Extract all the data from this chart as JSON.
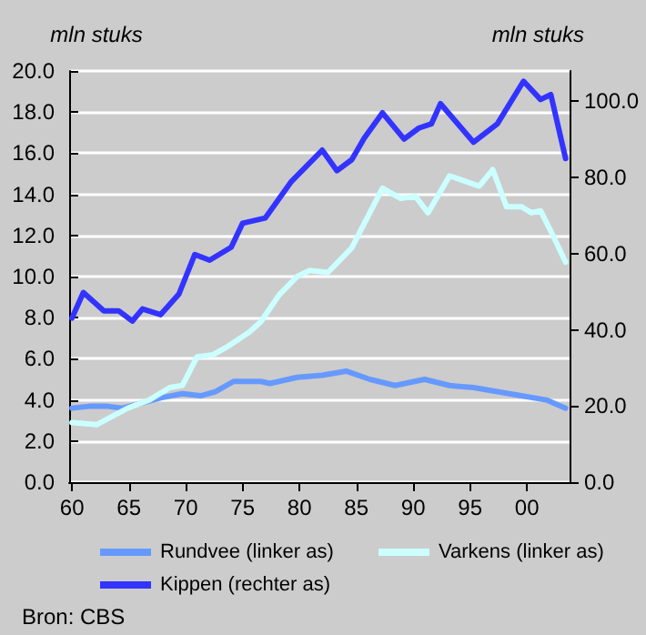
{
  "chart_data": {
    "type": "line",
    "ylabel": "mln stuks",
    "y2label": "mln stuks",
    "xlim": [
      1959.75,
      2003.75
    ],
    "xticks": [
      {
        "value": 1960,
        "label": "60"
      },
      {
        "value": 1965,
        "label": "65"
      },
      {
        "value": 1970,
        "label": "70"
      },
      {
        "value": 1975,
        "label": "75"
      },
      {
        "value": 1980,
        "label": "80"
      },
      {
        "value": 1985,
        "label": "85"
      },
      {
        "value": 1990,
        "label": "90"
      },
      {
        "value": 1995,
        "label": "95"
      },
      {
        "value": 2000,
        "label": "00"
      }
    ],
    "ylim": [
      0,
      20
    ],
    "yticks": [
      {
        "value": 0,
        "label": "0.0"
      },
      {
        "value": 2,
        "label": "2.0"
      },
      {
        "value": 4,
        "label": "4.0"
      },
      {
        "value": 6,
        "label": "6.0"
      },
      {
        "value": 8,
        "label": "8.0"
      },
      {
        "value": 10,
        "label": "10.0"
      },
      {
        "value": 12,
        "label": "12.0"
      },
      {
        "value": 14,
        "label": "14.0"
      },
      {
        "value": 16,
        "label": "16.0"
      },
      {
        "value": 18,
        "label": "18.0"
      },
      {
        "value": 20,
        "label": "20.0"
      }
    ],
    "y2lim": [
      0,
      108
    ],
    "y2ticks": [
      {
        "value": 0,
        "label": "0.0"
      },
      {
        "value": 20,
        "label": "20.0"
      },
      {
        "value": 40,
        "label": "40.0"
      },
      {
        "value": 60,
        "label": "60.0"
      },
      {
        "value": 80,
        "label": "80.0"
      },
      {
        "value": 100,
        "label": "100.0"
      }
    ],
    "grid": "y",
    "legend": "bottom",
    "marker": "none",
    "line_style": "solid",
    "annotations": [
      "Bron: CBS"
    ],
    "series": [
      {
        "name": "Rundvee (linker as)",
        "color": "#6699ff",
        "x": [
          1960,
          1961.7,
          1963,
          1964.4,
          1966.5,
          1967.8,
          1969.7,
          1971.3,
          1972.6,
          1974.2,
          1976.6,
          1977.4,
          1979.8,
          1982,
          1984.1,
          1986.2,
          1988.4,
          1991,
          1993.2,
          1995.3,
          1997.4,
          1999.5,
          2001.7,
          2003.4
        ],
        "values": [
          3.6,
          3.7,
          3.7,
          3.6,
          3.9,
          4.1,
          4.3,
          4.2,
          4.4,
          4.9,
          4.9,
          4.8,
          5.1,
          5.2,
          5.4,
          5.0,
          4.7,
          5.0,
          4.7,
          4.6,
          4.4,
          4.2,
          4.0,
          3.6
        ]
      },
      {
        "name": "Varkens (linker as)",
        "color": "#ccffff",
        "x": [
          1960,
          1962.2,
          1964.9,
          1966.8,
          1968.6,
          1969.7,
          1971,
          1972.4,
          1973.7,
          1975.6,
          1976.6,
          1978.2,
          1979.8,
          1980.9,
          1982.5,
          1984.6,
          1987.3,
          1988.9,
          1990.2,
          1991.3,
          1993.2,
          1995.8,
          1997,
          1998.2,
          1999.5,
          2000.4,
          2001.2,
          2002.2,
          2003.4
        ],
        "values": [
          2.9,
          2.8,
          3.6,
          4.0,
          4.6,
          4.7,
          6.1,
          6.2,
          6.6,
          7.3,
          7.8,
          9.1,
          10.0,
          10.3,
          10.2,
          11.4,
          14.3,
          13.8,
          13.9,
          13.1,
          14.9,
          14.4,
          15.2,
          13.4,
          13.4,
          13.1,
          13.2,
          12.1,
          10.7
        ]
      },
      {
        "name": "Kippen (rechter as)",
        "color": "#3333ff",
        "axis": "y2",
        "x": [
          1960,
          1961,
          1962.8,
          1964.1,
          1965.3,
          1966.2,
          1967.8,
          1969.4,
          1970.8,
          1972.1,
          1974,
          1975,
          1977,
          1979.3,
          1982,
          1983.3,
          1984.6,
          1985.7,
          1987.3,
          1989.2,
          1990.5,
          1991.6,
          1992.4,
          1995.3,
          1997.4,
          1999.7,
          2001.2,
          2002.1,
          2003.4
        ],
        "values": [
          43.1,
          49.8,
          45,
          45,
          42.3,
          45.5,
          44,
          49.4,
          59.8,
          58.3,
          61.7,
          68,
          69.4,
          79,
          87.2,
          81.8,
          84.7,
          90.4,
          97,
          90.1,
          93,
          94.1,
          99.4,
          89.3,
          94.1,
          105.3,
          100.5,
          101.8,
          85
        ]
      }
    ]
  }
}
